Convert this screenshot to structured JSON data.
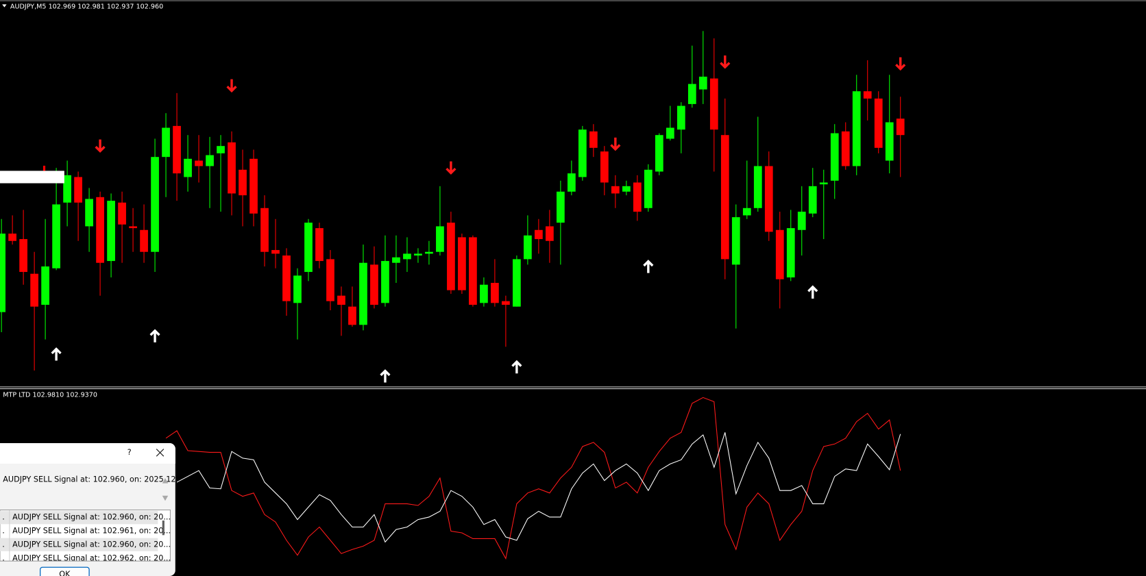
{
  "header": {
    "symbol": "AUDJPY,M5",
    "ohlc": [
      "102.969",
      "102.981",
      "102.937",
      "102.960"
    ]
  },
  "chart_data": [
    {
      "type": "candlestick",
      "open": [
        102.863,
        102.906,
        102.903,
        102.884,
        102.867,
        102.887,
        102.923,
        102.937,
        102.91,
        102.926,
        102.891,
        102.923,
        102.91,
        102.908,
        102.896,
        102.948,
        102.965,
        102.937,
        102.946,
        102.943,
        102.95,
        102.956,
        102.941,
        102.947,
        102.92,
        102.897,
        102.894,
        102.868,
        102.885,
        102.909,
        102.892,
        102.872,
        102.866,
        102.856,
        102.889,
        102.868,
        102.89,
        102.892,
        102.894,
        102.895,
        102.896,
        102.912,
        102.904,
        102.904,
        102.868,
        102.879,
        102.869,
        102.866,
        102.892,
        102.908,
        102.91,
        102.912,
        102.929,
        102.937,
        102.962,
        102.951,
        102.932,
        102.929,
        102.934,
        102.92,
        102.94,
        102.958,
        102.963,
        102.977,
        102.985,
        102.991,
        102.96,
        102.889,
        102.916,
        102.92,
        102.943,
        102.908,
        102.882,
        102.908,
        102.917,
        102.933,
        102.935,
        102.962,
        102.943,
        102.984,
        102.98,
        102.946,
        102.969
      ],
      "high": [
        102.914,
        102.916,
        102.919,
        102.896,
        102.914,
        102.942,
        102.946,
        102.94,
        102.931,
        102.929,
        102.928,
        102.929,
        102.92,
        102.922,
        102.958,
        102.972,
        102.983,
        102.96,
        102.96,
        102.959,
        102.96,
        102.962,
        102.952,
        102.952,
        102.927,
        102.914,
        102.898,
        102.887,
        102.914,
        102.912,
        102.897,
        102.877,
        102.877,
        102.9,
        102.899,
        102.905,
        102.905,
        102.904,
        102.898,
        102.902,
        102.932,
        102.918,
        102.906,
        102.905,
        102.882,
        102.892,
        102.872,
        102.894,
        102.916,
        102.914,
        102.919,
        102.935,
        102.946,
        102.965,
        102.966,
        102.954,
        102.938,
        102.935,
        102.938,
        102.944,
        102.961,
        102.976,
        102.978,
        103.009,
        103.017,
        103.013,
        102.98,
        102.922,
        102.946,
        102.97,
        102.951,
        102.918,
        102.919,
        102.932,
        102.942,
        102.941,
        102.966,
        102.967,
        102.993,
        103.001,
        102.984,
        102.993,
        102.981
      ],
      "low": [
        102.852,
        102.9,
        102.878,
        102.831,
        102.848,
        102.886,
        102.91,
        102.902,
        102.896,
        102.872,
        102.882,
        102.89,
        102.896,
        102.89,
        102.885,
        102.926,
        102.924,
        102.929,
        102.934,
        102.92,
        102.918,
        102.916,
        102.91,
        102.91,
        102.888,
        102.887,
        102.861,
        102.848,
        102.88,
        102.887,
        102.864,
        102.85,
        102.855,
        102.853,
        102.865,
        102.866,
        102.879,
        102.885,
        102.89,
        102.889,
        102.894,
        102.873,
        102.873,
        102.866,
        102.866,
        102.866,
        102.844,
        102.866,
        102.889,
        102.895,
        102.89,
        102.889,
        102.927,
        102.935,
        102.948,
        102.927,
        102.92,
        102.927,
        102.913,
        102.918,
        102.938,
        102.957,
        102.95,
        102.975,
        102.977,
        102.94,
        102.881,
        102.854,
        102.914,
        102.918,
        102.902,
        102.865,
        102.88,
        102.894,
        102.915,
        102.903,
        102.925,
        102.941,
        102.938,
        102.968,
        102.95,
        102.939,
        102.937
      ],
      "close": [
        102.906,
        102.902,
        102.885,
        102.866,
        102.888,
        102.922,
        102.938,
        102.923,
        102.925,
        102.89,
        102.924,
        102.911,
        102.909,
        102.896,
        102.948,
        102.964,
        102.939,
        102.947,
        102.943,
        102.949,
        102.954,
        102.928,
        102.927,
        102.917,
        102.896,
        102.895,
        102.869,
        102.883,
        102.912,
        102.891,
        102.869,
        102.867,
        102.856,
        102.89,
        102.867,
        102.891,
        102.893,
        102.895,
        102.895,
        102.896,
        102.91,
        102.875,
        102.875,
        102.867,
        102.878,
        102.868,
        102.867,
        102.892,
        102.905,
        102.903,
        102.902,
        102.929,
        102.939,
        102.963,
        102.953,
        102.934,
        102.928,
        102.932,
        102.918,
        102.941,
        102.96,
        102.964,
        102.976,
        102.988,
        102.992,
        102.963,
        102.892,
        102.915,
        102.92,
        102.943,
        102.907,
        102.881,
        102.909,
        102.918,
        102.932,
        102.934,
        102.961,
        102.943,
        102.984,
        102.98,
        102.953,
        102.967,
        102.96
      ],
      "up_color": "#00ff00",
      "down_color": "#ff0000",
      "ylim": [
        102.822,
        103.034
      ],
      "buy_signals": {
        "index": [
          5,
          14,
          35,
          47,
          59,
          74
        ],
        "price": [
          102.84,
          102.85,
          102.828,
          102.833,
          102.888,
          102.874
        ],
        "color": "#ffffff"
      },
      "sell_signals": {
        "index": [
          9,
          21,
          41,
          56,
          66,
          82
        ],
        "price": [
          102.954,
          102.987,
          102.942,
          102.955,
          103.0,
          102.999
        ],
        "color": "#ff1a1a"
      }
    },
    {
      "type": "line",
      "title": "MTP LTD",
      "legend_values": [
        "102.9810",
        "102.9370"
      ],
      "ylim": [
        102.81,
        103.029
      ],
      "series": [
        {
          "color": "#ff1a1a",
          "values": [
            null,
            null,
            null,
            null,
            null,
            null,
            null,
            null,
            null,
            null,
            null,
            null,
            null,
            null,
            null,
            102.976,
            102.985,
            102.961,
            102.96,
            102.959,
            102.959,
            102.913,
            102.906,
            102.91,
            102.884,
            102.875,
            102.853,
            102.835,
            102.857,
            102.869,
            102.853,
            102.837,
            102.842,
            102.846,
            102.853,
            102.897,
            102.897,
            102.897,
            102.895,
            102.906,
            102.928,
            102.864,
            102.862,
            102.855,
            102.855,
            102.855,
            102.831,
            102.897,
            102.91,
            102.915,
            102.91,
            102.928,
            102.941,
            102.966,
            102.971,
            102.959,
            102.916,
            102.923,
            102.91,
            102.941,
            102.96,
            102.976,
            102.983,
            103.018,
            103.025,
            103.02,
            102.872,
            102.842,
            102.893,
            102.91,
            102.897,
            102.853,
            102.872,
            102.888,
            102.937,
            102.966,
            102.969,
            102.976,
            102.996,
            103.006,
            102.987,
            102.998,
            102.937
          ]
        },
        {
          "color": "#ffffff",
          "values": [
            null,
            null,
            null,
            null,
            null,
            null,
            null,
            null,
            null,
            null,
            null,
            null,
            null,
            null,
            null,
            null,
            102.923,
            102.93,
            102.937,
            102.916,
            102.915,
            102.96,
            102.952,
            102.95,
            102.923,
            102.91,
            102.897,
            102.878,
            102.893,
            102.908,
            102.901,
            102.884,
            102.869,
            102.869,
            102.884,
            102.851,
            102.866,
            102.869,
            102.878,
            102.881,
            102.888,
            102.913,
            102.906,
            102.893,
            102.872,
            102.878,
            102.857,
            102.853,
            102.879,
            102.888,
            102.881,
            102.881,
            102.915,
            102.934,
            102.945,
            102.925,
            102.937,
            102.945,
            102.934,
            102.913,
            102.937,
            102.945,
            102.95,
            102.969,
            102.98,
            102.941,
            102.983,
            102.909,
            102.943,
            102.971,
            102.952,
            102.913,
            102.913,
            102.919,
            102.897,
            102.897,
            102.93,
            102.939,
            102.937,
            102.969,
            102.954,
            102.938,
            102.981
          ]
        }
      ]
    }
  ],
  "dialog": {
    "help": "?",
    "message": "AUDJPY SELL Signal at: 102.960, on: 2025.12.",
    "rows": [
      [
        ".",
        "AUDJPY SELL Signal at: 102.960, on: 20..."
      ],
      [
        ".",
        "AUDJPY SELL Signal at: 102.961, on: 20..."
      ],
      [
        ".",
        "AUDJPY SELL Signal at: 102.960, on: 20..."
      ],
      [
        ".",
        "AUDJPY SELL Signal at: 102.962, on: 20..."
      ]
    ],
    "ok": "OK"
  }
}
